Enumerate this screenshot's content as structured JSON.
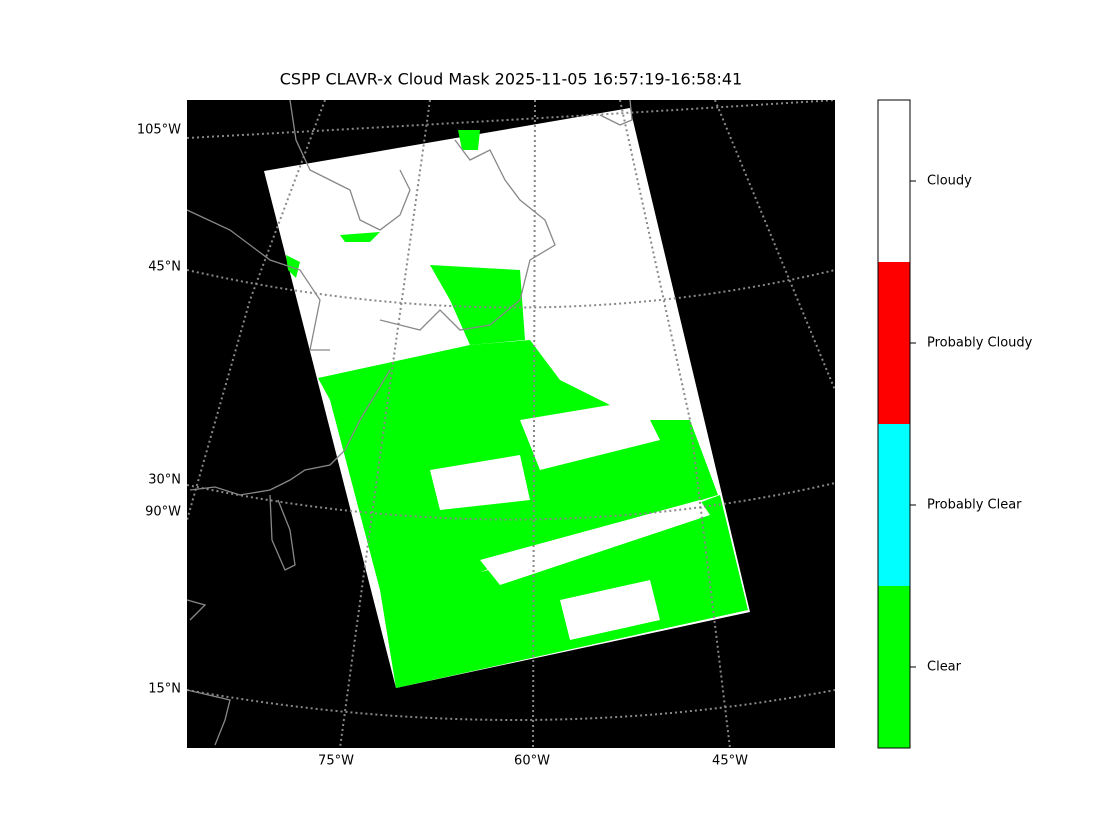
{
  "title": "CSPP CLAVR-x Cloud Mask 2025-11-05 16:57:19-16:58:41",
  "map": {
    "left_labels": [
      "105°W",
      "45°N",
      "30°N",
      "90°W",
      "15°N"
    ],
    "bottom_labels": [
      "75°W",
      "60°W",
      "45°W"
    ]
  },
  "colorbar": {
    "classes": [
      {
        "label": "Cloudy",
        "color": "#ffffff"
      },
      {
        "label": "Probably Cloudy",
        "color": "#ff0000"
      },
      {
        "label": "Probably Clear",
        "color": "#00ffff"
      },
      {
        "label": "Clear",
        "color": "#00ff00"
      }
    ]
  }
}
